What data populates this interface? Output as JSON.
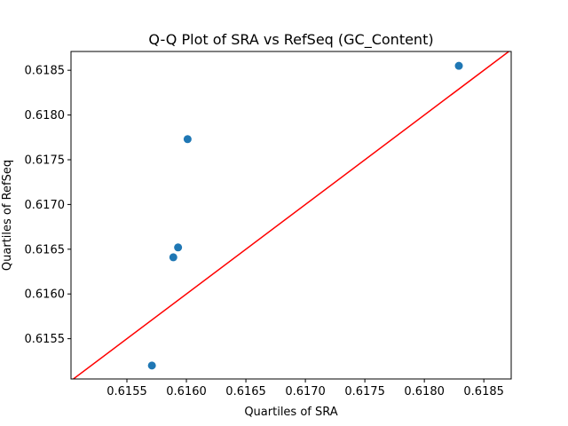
{
  "chart_data": {
    "type": "scatter",
    "title": "Q-Q Plot of SRA vs RefSeq (GC_Content)",
    "xlabel": "Quartiles of SRA",
    "ylabel": "Quartiles of RefSeq",
    "xlim": [
      0.61503,
      0.61873
    ],
    "ylim": [
      0.61505,
      0.61871
    ],
    "x_ticks": [
      "0.6155",
      "0.6160",
      "0.6165",
      "0.6170",
      "0.6175",
      "0.6180",
      "0.6185"
    ],
    "y_ticks": [
      "0.6155",
      "0.6160",
      "0.6165",
      "0.6170",
      "0.6175",
      "0.6180",
      "0.6185"
    ],
    "grid": false,
    "series": [
      {
        "color": "#1f77b4",
        "points": [
          {
            "x": 0.61571,
            "y": 0.6152
          },
          {
            "x": 0.61589,
            "y": 0.61641
          },
          {
            "x": 0.61593,
            "y": 0.61652
          },
          {
            "x": 0.61601,
            "y": 0.61773
          },
          {
            "x": 0.61829,
            "y": 0.61855
          }
        ]
      }
    ],
    "reference_line": {
      "color": "#ff0000",
      "slope": 1,
      "intercept": 0
    }
  }
}
